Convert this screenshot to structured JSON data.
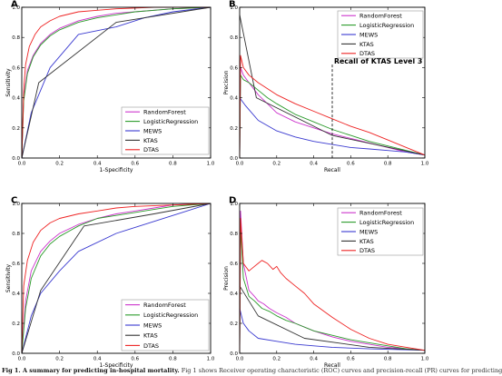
{
  "colors": {
    "RandomForest": "#cc33cc",
    "LogisticRegression": "#2a9a2a",
    "MEWS": "#3a3ad0",
    "KTAS": "#333333",
    "DTAS": "#ee2222",
    "frame": "#000000",
    "legend_border": "#999999"
  },
  "caption": {
    "bold": "Fig 1. A summary for predicting in-hospital mortality.",
    "text": "Fig 1 shows Receiver operating characteristic (ROC) curves and precision-recall (PR) curves for predicting"
  },
  "chart_data": [
    {
      "panel": "A",
      "type": "line",
      "xlabel": "1-Specificity",
      "ylabel": "Sensitivity",
      "xlim": [
        0,
        1
      ],
      "ylim": [
        0,
        1
      ],
      "xticks": [
        "0.0",
        "0.2",
        "0.4",
        "0.6",
        "0.8",
        "1.0"
      ],
      "yticks": [
        "0.0",
        "0.2",
        "0.4",
        "0.6",
        "0.8",
        "1.0"
      ],
      "grid": false,
      "legend": "bottom-right",
      "series": [
        {
          "name": "RandomForest",
          "x": [
            0,
            0.01,
            0.03,
            0.06,
            0.1,
            0.15,
            0.2,
            0.3,
            0.4,
            0.5,
            0.6,
            0.8,
            1.0
          ],
          "y": [
            0,
            0.4,
            0.58,
            0.68,
            0.76,
            0.82,
            0.86,
            0.91,
            0.94,
            0.96,
            0.97,
            0.99,
            1.0
          ]
        },
        {
          "name": "LogisticRegression",
          "x": [
            0,
            0.01,
            0.03,
            0.06,
            0.1,
            0.15,
            0.2,
            0.3,
            0.4,
            0.5,
            0.6,
            0.8,
            1.0
          ],
          "y": [
            0,
            0.38,
            0.56,
            0.67,
            0.75,
            0.81,
            0.85,
            0.9,
            0.93,
            0.95,
            0.97,
            0.99,
            1.0
          ]
        },
        {
          "name": "MEWS",
          "x": [
            0,
            0.05,
            0.15,
            0.3,
            0.5,
            0.65,
            0.8,
            1.0
          ],
          "y": [
            0,
            0.3,
            0.6,
            0.82,
            0.87,
            0.93,
            0.97,
            1.0
          ]
        },
        {
          "name": "KTAS",
          "x": [
            0,
            0.09,
            0.5,
            1.0
          ],
          "y": [
            0,
            0.5,
            0.9,
            1.0
          ]
        },
        {
          "name": "DTAS",
          "x": [
            0,
            0.01,
            0.02,
            0.04,
            0.07,
            0.1,
            0.15,
            0.2,
            0.3,
            0.4,
            0.5,
            0.7,
            1.0
          ],
          "y": [
            0,
            0.45,
            0.62,
            0.74,
            0.82,
            0.87,
            0.91,
            0.94,
            0.97,
            0.98,
            0.99,
            1.0,
            1.0
          ]
        }
      ]
    },
    {
      "panel": "B",
      "type": "line",
      "xlabel": "Recall",
      "ylabel": "Precision",
      "xlim": [
        0,
        1
      ],
      "ylim": [
        0,
        1
      ],
      "xticks": [
        "0.0",
        "0.2",
        "0.4",
        "0.6",
        "0.8",
        "1.0"
      ],
      "yticks": [
        "0.0",
        "0.2",
        "0.4",
        "0.6",
        "0.8",
        "1.0"
      ],
      "grid": false,
      "legend": "top-right",
      "annotation": {
        "text": "Recall of KTAS Level 3",
        "x": 0.5
      },
      "series": [
        {
          "name": "RandomForest",
          "x": [
            0,
            0.005,
            0.02,
            0.05,
            0.1,
            0.15,
            0.2,
            0.3,
            0.4,
            0.5,
            0.6,
            0.7,
            0.8,
            0.9,
            1.0
          ],
          "y": [
            0,
            0.6,
            0.55,
            0.5,
            0.42,
            0.36,
            0.3,
            0.24,
            0.2,
            0.16,
            0.13,
            0.1,
            0.07,
            0.04,
            0.02
          ]
        },
        {
          "name": "LogisticRegression",
          "x": [
            0,
            0.005,
            0.02,
            0.05,
            0.1,
            0.15,
            0.2,
            0.3,
            0.4,
            0.5,
            0.6,
            0.7,
            0.8,
            0.9,
            1.0
          ],
          "y": [
            0,
            0.55,
            0.52,
            0.5,
            0.45,
            0.4,
            0.36,
            0.29,
            0.24,
            0.19,
            0.15,
            0.11,
            0.08,
            0.05,
            0.02
          ]
        },
        {
          "name": "MEWS",
          "x": [
            0,
            0.03,
            0.1,
            0.2,
            0.3,
            0.4,
            0.5,
            0.6,
            0.7,
            0.8,
            0.9,
            1.0
          ],
          "y": [
            0.4,
            0.35,
            0.25,
            0.18,
            0.14,
            0.11,
            0.09,
            0.07,
            0.06,
            0.05,
            0.04,
            0.02
          ]
        },
        {
          "name": "KTAS",
          "x": [
            0,
            0.09,
            0.5,
            1.0
          ],
          "y": [
            0.95,
            0.4,
            0.15,
            0.02
          ]
        },
        {
          "name": "DTAS",
          "x": [
            0,
            0.005,
            0.02,
            0.05,
            0.1,
            0.15,
            0.2,
            0.3,
            0.4,
            0.5,
            0.6,
            0.7,
            0.8,
            0.9,
            1.0
          ],
          "y": [
            0,
            0.68,
            0.6,
            0.55,
            0.5,
            0.46,
            0.42,
            0.36,
            0.31,
            0.26,
            0.21,
            0.17,
            0.12,
            0.07,
            0.02
          ]
        }
      ]
    },
    {
      "panel": "C",
      "type": "line",
      "xlabel": "1-Specificity",
      "ylabel": "Sensitivity",
      "xlim": [
        0,
        1
      ],
      "ylim": [
        0,
        1
      ],
      "xticks": [
        "0.0",
        "0.2",
        "0.4",
        "0.6",
        "0.8",
        "1.0"
      ],
      "yticks": [
        "0.0",
        "0.2",
        "0.4",
        "0.6",
        "0.8",
        "1.0"
      ],
      "grid": false,
      "legend": "bottom-right",
      "series": [
        {
          "name": "RandomForest",
          "x": [
            0,
            0.02,
            0.05,
            0.1,
            0.15,
            0.2,
            0.3,
            0.4,
            0.5,
            0.6,
            0.7,
            0.8,
            1.0
          ],
          "y": [
            0,
            0.35,
            0.55,
            0.68,
            0.75,
            0.8,
            0.86,
            0.9,
            0.93,
            0.95,
            0.97,
            0.99,
            1.0
          ]
        },
        {
          "name": "LogisticRegression",
          "x": [
            0,
            0.02,
            0.05,
            0.1,
            0.15,
            0.2,
            0.3,
            0.4,
            0.5,
            0.6,
            0.7,
            0.8,
            1.0
          ],
          "y": [
            0,
            0.3,
            0.5,
            0.65,
            0.73,
            0.78,
            0.85,
            0.9,
            0.92,
            0.94,
            0.96,
            0.98,
            1.0
          ]
        },
        {
          "name": "MEWS",
          "x": [
            0,
            0.05,
            0.1,
            0.2,
            0.3,
            0.5,
            0.7,
            0.85,
            1.0
          ],
          "y": [
            0,
            0.25,
            0.4,
            0.55,
            0.68,
            0.8,
            0.88,
            0.94,
            1.0
          ]
        },
        {
          "name": "KTAS",
          "x": [
            0,
            0.1,
            0.33,
            0.7,
            1.0
          ],
          "y": [
            0,
            0.42,
            0.85,
            0.93,
            1.0
          ]
        },
        {
          "name": "DTAS",
          "x": [
            0,
            0.01,
            0.03,
            0.06,
            0.1,
            0.15,
            0.2,
            0.3,
            0.4,
            0.5,
            0.6,
            0.8,
            1.0
          ],
          "y": [
            0,
            0.45,
            0.62,
            0.74,
            0.82,
            0.87,
            0.9,
            0.93,
            0.95,
            0.97,
            0.98,
            0.99,
            1.0
          ]
        }
      ]
    },
    {
      "panel": "D",
      "type": "line",
      "xlabel": "Recall",
      "ylabel": "Precision",
      "xlim": [
        0,
        1
      ],
      "ylim": [
        0,
        1
      ],
      "xticks": [
        "0.0",
        "0.2",
        "0.4",
        "0.6",
        "0.8",
        "1.0"
      ],
      "yticks": [
        "0.0",
        "0.2",
        "0.4",
        "0.6",
        "0.8",
        "1.0"
      ],
      "grid": false,
      "legend": "top-right",
      "series": [
        {
          "name": "RandomForest",
          "x": [
            0,
            0.005,
            0.02,
            0.05,
            0.08,
            0.1,
            0.13,
            0.16,
            0.2,
            0.25,
            0.3,
            0.4,
            0.5,
            0.6,
            0.7,
            0.8,
            0.9,
            1.0
          ],
          "y": [
            0,
            0.95,
            0.6,
            0.42,
            0.38,
            0.35,
            0.33,
            0.3,
            0.27,
            0.24,
            0.2,
            0.15,
            0.11,
            0.08,
            0.06,
            0.04,
            0.03,
            0.02
          ]
        },
        {
          "name": "LogisticRegression",
          "x": [
            0,
            0.005,
            0.02,
            0.05,
            0.08,
            0.12,
            0.16,
            0.2,
            0.25,
            0.3,
            0.4,
            0.5,
            0.6,
            0.7,
            0.8,
            0.9,
            1.0
          ],
          "y": [
            0,
            0.85,
            0.5,
            0.38,
            0.35,
            0.3,
            0.28,
            0.25,
            0.22,
            0.2,
            0.15,
            0.12,
            0.09,
            0.07,
            0.05,
            0.03,
            0.02
          ]
        },
        {
          "name": "MEWS",
          "x": [
            0,
            0.02,
            0.05,
            0.1,
            0.2,
            0.3,
            0.4,
            0.5,
            0.7,
            1.0
          ],
          "y": [
            0.3,
            0.2,
            0.15,
            0.1,
            0.08,
            0.06,
            0.05,
            0.04,
            0.03,
            0.02
          ]
        },
        {
          "name": "KTAS",
          "x": [
            0,
            0.1,
            0.35,
            0.7,
            1.0
          ],
          "y": [
            0.45,
            0.25,
            0.1,
            0.04,
            0.02
          ]
        },
        {
          "name": "DTAS",
          "x": [
            0,
            0.005,
            0.02,
            0.05,
            0.08,
            0.1,
            0.12,
            0.15,
            0.18,
            0.2,
            0.22,
            0.25,
            0.3,
            0.35,
            0.4,
            0.5,
            0.6,
            0.7,
            0.8,
            0.9,
            1.0
          ],
          "y": [
            0,
            0.9,
            0.6,
            0.55,
            0.58,
            0.6,
            0.62,
            0.6,
            0.56,
            0.58,
            0.54,
            0.5,
            0.45,
            0.4,
            0.33,
            0.24,
            0.16,
            0.1,
            0.06,
            0.04,
            0.02
          ]
        }
      ]
    }
  ]
}
